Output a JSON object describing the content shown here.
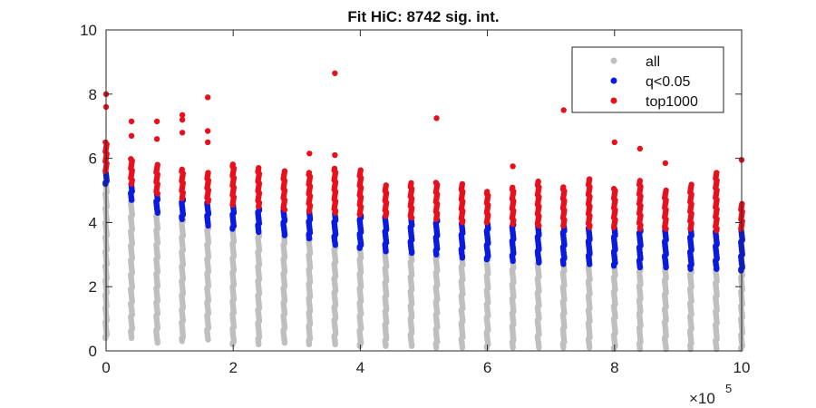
{
  "chart_data": {
    "type": "scatter",
    "title": "Fit HiC: 8742 sig. int.",
    "xlabel": "",
    "ylabel": "",
    "x_exponent_label": "×10",
    "x_exponent_power": "5",
    "xlim": [
      0,
      1000000
    ],
    "ylim": [
      0,
      10
    ],
    "x_ticks": [
      0,
      200000,
      400000,
      600000,
      800000,
      1000000
    ],
    "x_tick_labels": [
      "0",
      "2",
      "4",
      "6",
      "8",
      "10"
    ],
    "y_ticks": [
      0,
      2,
      4,
      6,
      8,
      10
    ],
    "y_tick_labels": [
      "0",
      "2",
      "4",
      "6",
      "8",
      "10"
    ],
    "grid": false,
    "legend_position": "top-right",
    "legend_marker_colors": [
      "#bfbfbf",
      "#0a1adf",
      "#e8101c"
    ],
    "bins": [
      {
        "x": 0,
        "all": [
          0.4,
          5.2
        ],
        "sig": [
          5.2,
          5.6
        ],
        "top": [
          5.6,
          6.5
        ],
        "outliers": [
          7.6,
          8.0
        ]
      },
      {
        "x": 40000,
        "all": [
          0.4,
          4.7
        ],
        "sig": [
          4.7,
          5.2
        ],
        "top": [
          5.2,
          6.0
        ],
        "outliers": [
          6.7,
          7.15
        ]
      },
      {
        "x": 80000,
        "all": [
          0.25,
          4.3
        ],
        "sig": [
          4.3,
          4.9
        ],
        "top": [
          4.9,
          5.8
        ],
        "outliers": [
          6.6,
          7.15
        ]
      },
      {
        "x": 120000,
        "all": [
          0.3,
          4.1
        ],
        "sig": [
          4.1,
          4.75
        ],
        "top": [
          4.75,
          5.7
        ],
        "outliers": [
          6.8,
          7.2,
          7.35
        ]
      },
      {
        "x": 160000,
        "all": [
          0.35,
          3.9
        ],
        "sig": [
          3.9,
          4.65
        ],
        "top": [
          4.65,
          5.6
        ],
        "outliers": [
          6.5,
          6.85,
          7.9
        ]
      },
      {
        "x": 200000,
        "all": [
          0.2,
          3.8
        ],
        "sig": [
          3.8,
          4.55
        ],
        "top": [
          4.55,
          5.85
        ],
        "outliers": []
      },
      {
        "x": 240000,
        "all": [
          0.2,
          3.7
        ],
        "sig": [
          3.7,
          4.5
        ],
        "top": [
          4.5,
          5.75
        ],
        "outliers": []
      },
      {
        "x": 280000,
        "all": [
          0.25,
          3.6
        ],
        "sig": [
          3.6,
          4.4
        ],
        "top": [
          4.4,
          5.6
        ],
        "outliers": []
      },
      {
        "x": 320000,
        "all": [
          0.2,
          3.5
        ],
        "sig": [
          3.5,
          4.35
        ],
        "top": [
          4.35,
          5.6
        ],
        "outliers": [
          6.15
        ]
      },
      {
        "x": 360000,
        "all": [
          0.2,
          3.3
        ],
        "sig": [
          3.3,
          4.3
        ],
        "top": [
          4.3,
          5.7
        ],
        "outliers": [
          6.1,
          8.65
        ]
      },
      {
        "x": 400000,
        "all": [
          0.15,
          3.2
        ],
        "sig": [
          3.2,
          4.25
        ],
        "top": [
          4.25,
          5.65
        ],
        "outliers": []
      },
      {
        "x": 440000,
        "all": [
          0.15,
          3.1
        ],
        "sig": [
          3.1,
          4.2
        ],
        "top": [
          4.2,
          5.2
        ],
        "outliers": []
      },
      {
        "x": 480000,
        "all": [
          0.15,
          3.05
        ],
        "sig": [
          3.05,
          4.15
        ],
        "top": [
          4.15,
          5.25
        ],
        "outliers": []
      },
      {
        "x": 520000,
        "all": [
          0.1,
          3.0
        ],
        "sig": [
          3.0,
          4.1
        ],
        "top": [
          4.1,
          5.25
        ],
        "outliers": [
          7.25
        ]
      },
      {
        "x": 560000,
        "all": [
          0.1,
          2.9
        ],
        "sig": [
          2.9,
          4.0
        ],
        "top": [
          4.0,
          5.2
        ],
        "outliers": []
      },
      {
        "x": 600000,
        "all": [
          0.1,
          2.85
        ],
        "sig": [
          2.85,
          4.0
        ],
        "top": [
          4.0,
          5.0
        ],
        "outliers": []
      },
      {
        "x": 640000,
        "all": [
          0.1,
          2.8
        ],
        "sig": [
          2.8,
          3.95
        ],
        "top": [
          3.95,
          5.1
        ],
        "outliers": [
          5.75
        ]
      },
      {
        "x": 680000,
        "all": [
          0.1,
          2.75
        ],
        "sig": [
          2.75,
          3.9
        ],
        "top": [
          3.9,
          5.3
        ],
        "outliers": []
      },
      {
        "x": 720000,
        "all": [
          0.1,
          2.7
        ],
        "sig": [
          2.7,
          3.9
        ],
        "top": [
          3.9,
          5.1
        ],
        "outliers": [
          7.5
        ]
      },
      {
        "x": 760000,
        "all": [
          0.1,
          2.7
        ],
        "sig": [
          2.7,
          3.85
        ],
        "top": [
          3.85,
          5.4
        ],
        "outliers": []
      },
      {
        "x": 800000,
        "all": [
          0.05,
          2.65
        ],
        "sig": [
          2.65,
          3.85
        ],
        "top": [
          3.85,
          5.1
        ],
        "outliers": [
          6.5
        ]
      },
      {
        "x": 840000,
        "all": [
          0.05,
          2.6
        ],
        "sig": [
          2.6,
          3.8
        ],
        "top": [
          3.8,
          5.3
        ],
        "outliers": [
          6.3
        ]
      },
      {
        "x": 880000,
        "all": [
          0.05,
          2.6
        ],
        "sig": [
          2.6,
          3.8
        ],
        "top": [
          3.8,
          5.0
        ],
        "outliers": [
          5.85
        ]
      },
      {
        "x": 920000,
        "all": [
          0.05,
          2.55
        ],
        "sig": [
          2.55,
          3.8
        ],
        "top": [
          3.8,
          5.2
        ],
        "outliers": []
      },
      {
        "x": 960000,
        "all": [
          0.05,
          2.55
        ],
        "sig": [
          2.55,
          3.75
        ],
        "top": [
          3.75,
          5.6
        ],
        "outliers": []
      },
      {
        "x": 1000000,
        "all": [
          0.05,
          2.5
        ],
        "sig": [
          2.5,
          3.8
        ],
        "top": [
          3.8,
          4.6
        ],
        "outliers": [
          5.95
        ]
      }
    ],
    "series": [
      {
        "name": "all",
        "color": "#bfbfbf"
      },
      {
        "name": "q<0.05",
        "color": "#0a1adf"
      },
      {
        "name": "top1000",
        "color": "#e8101c"
      }
    ]
  }
}
